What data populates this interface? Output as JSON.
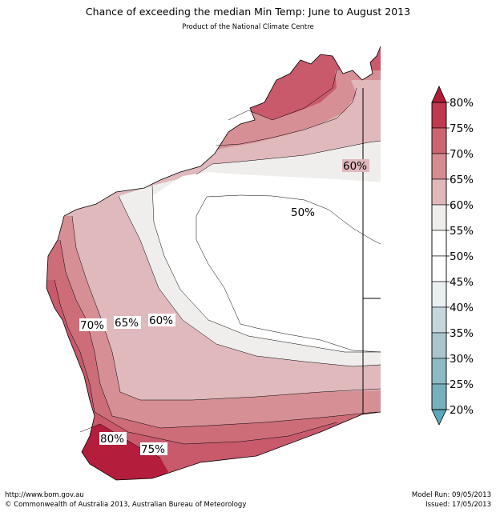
{
  "header": {
    "title": "Chance of exceeding the median Min Temp: June to August 2013",
    "subtitle": "Product of the National Climate Centre"
  },
  "footer": {
    "url": "http://www.bom.gov.au",
    "copyright": "©  Commonwealth of Australia 2013, Australian Bureau of Meteorology",
    "model_run": "Model Run: 09/05/2013",
    "issued": "Issued: 17/05/2013"
  },
  "map": {
    "region": "Western Australia",
    "contour_labels": [
      "60%",
      "50%",
      "70%",
      "65%",
      "60%",
      "80%",
      "75%"
    ],
    "band_colors": {
      "p75_80": "#b41d3c",
      "p70_75": "#c85a6c",
      "p65_70": "#cd6d78",
      "p60_65": "#d68f95",
      "p55_60": "#e0b9bc",
      "p50_55": "#efeeec",
      "p45_55": "#ffffff"
    }
  },
  "legend": {
    "ticks": [
      "80%",
      "75%",
      "70%",
      "65%",
      "60%",
      "55%",
      "50%",
      "45%",
      "40%",
      "35%",
      "30%",
      "25%",
      "20%"
    ],
    "colors": [
      "#c0394f",
      "#cd6570",
      "#d68b90",
      "#e1b8ba",
      "#efeeec",
      "#ffffff",
      "#ffffff",
      "#e8f0f1",
      "#c5d7db",
      "#a8c6cc",
      "#8dbac3",
      "#76b0bd"
    ],
    "top_arrow_color": "#b01c36",
    "bottom_arrow_color": "#5aa8bd"
  }
}
